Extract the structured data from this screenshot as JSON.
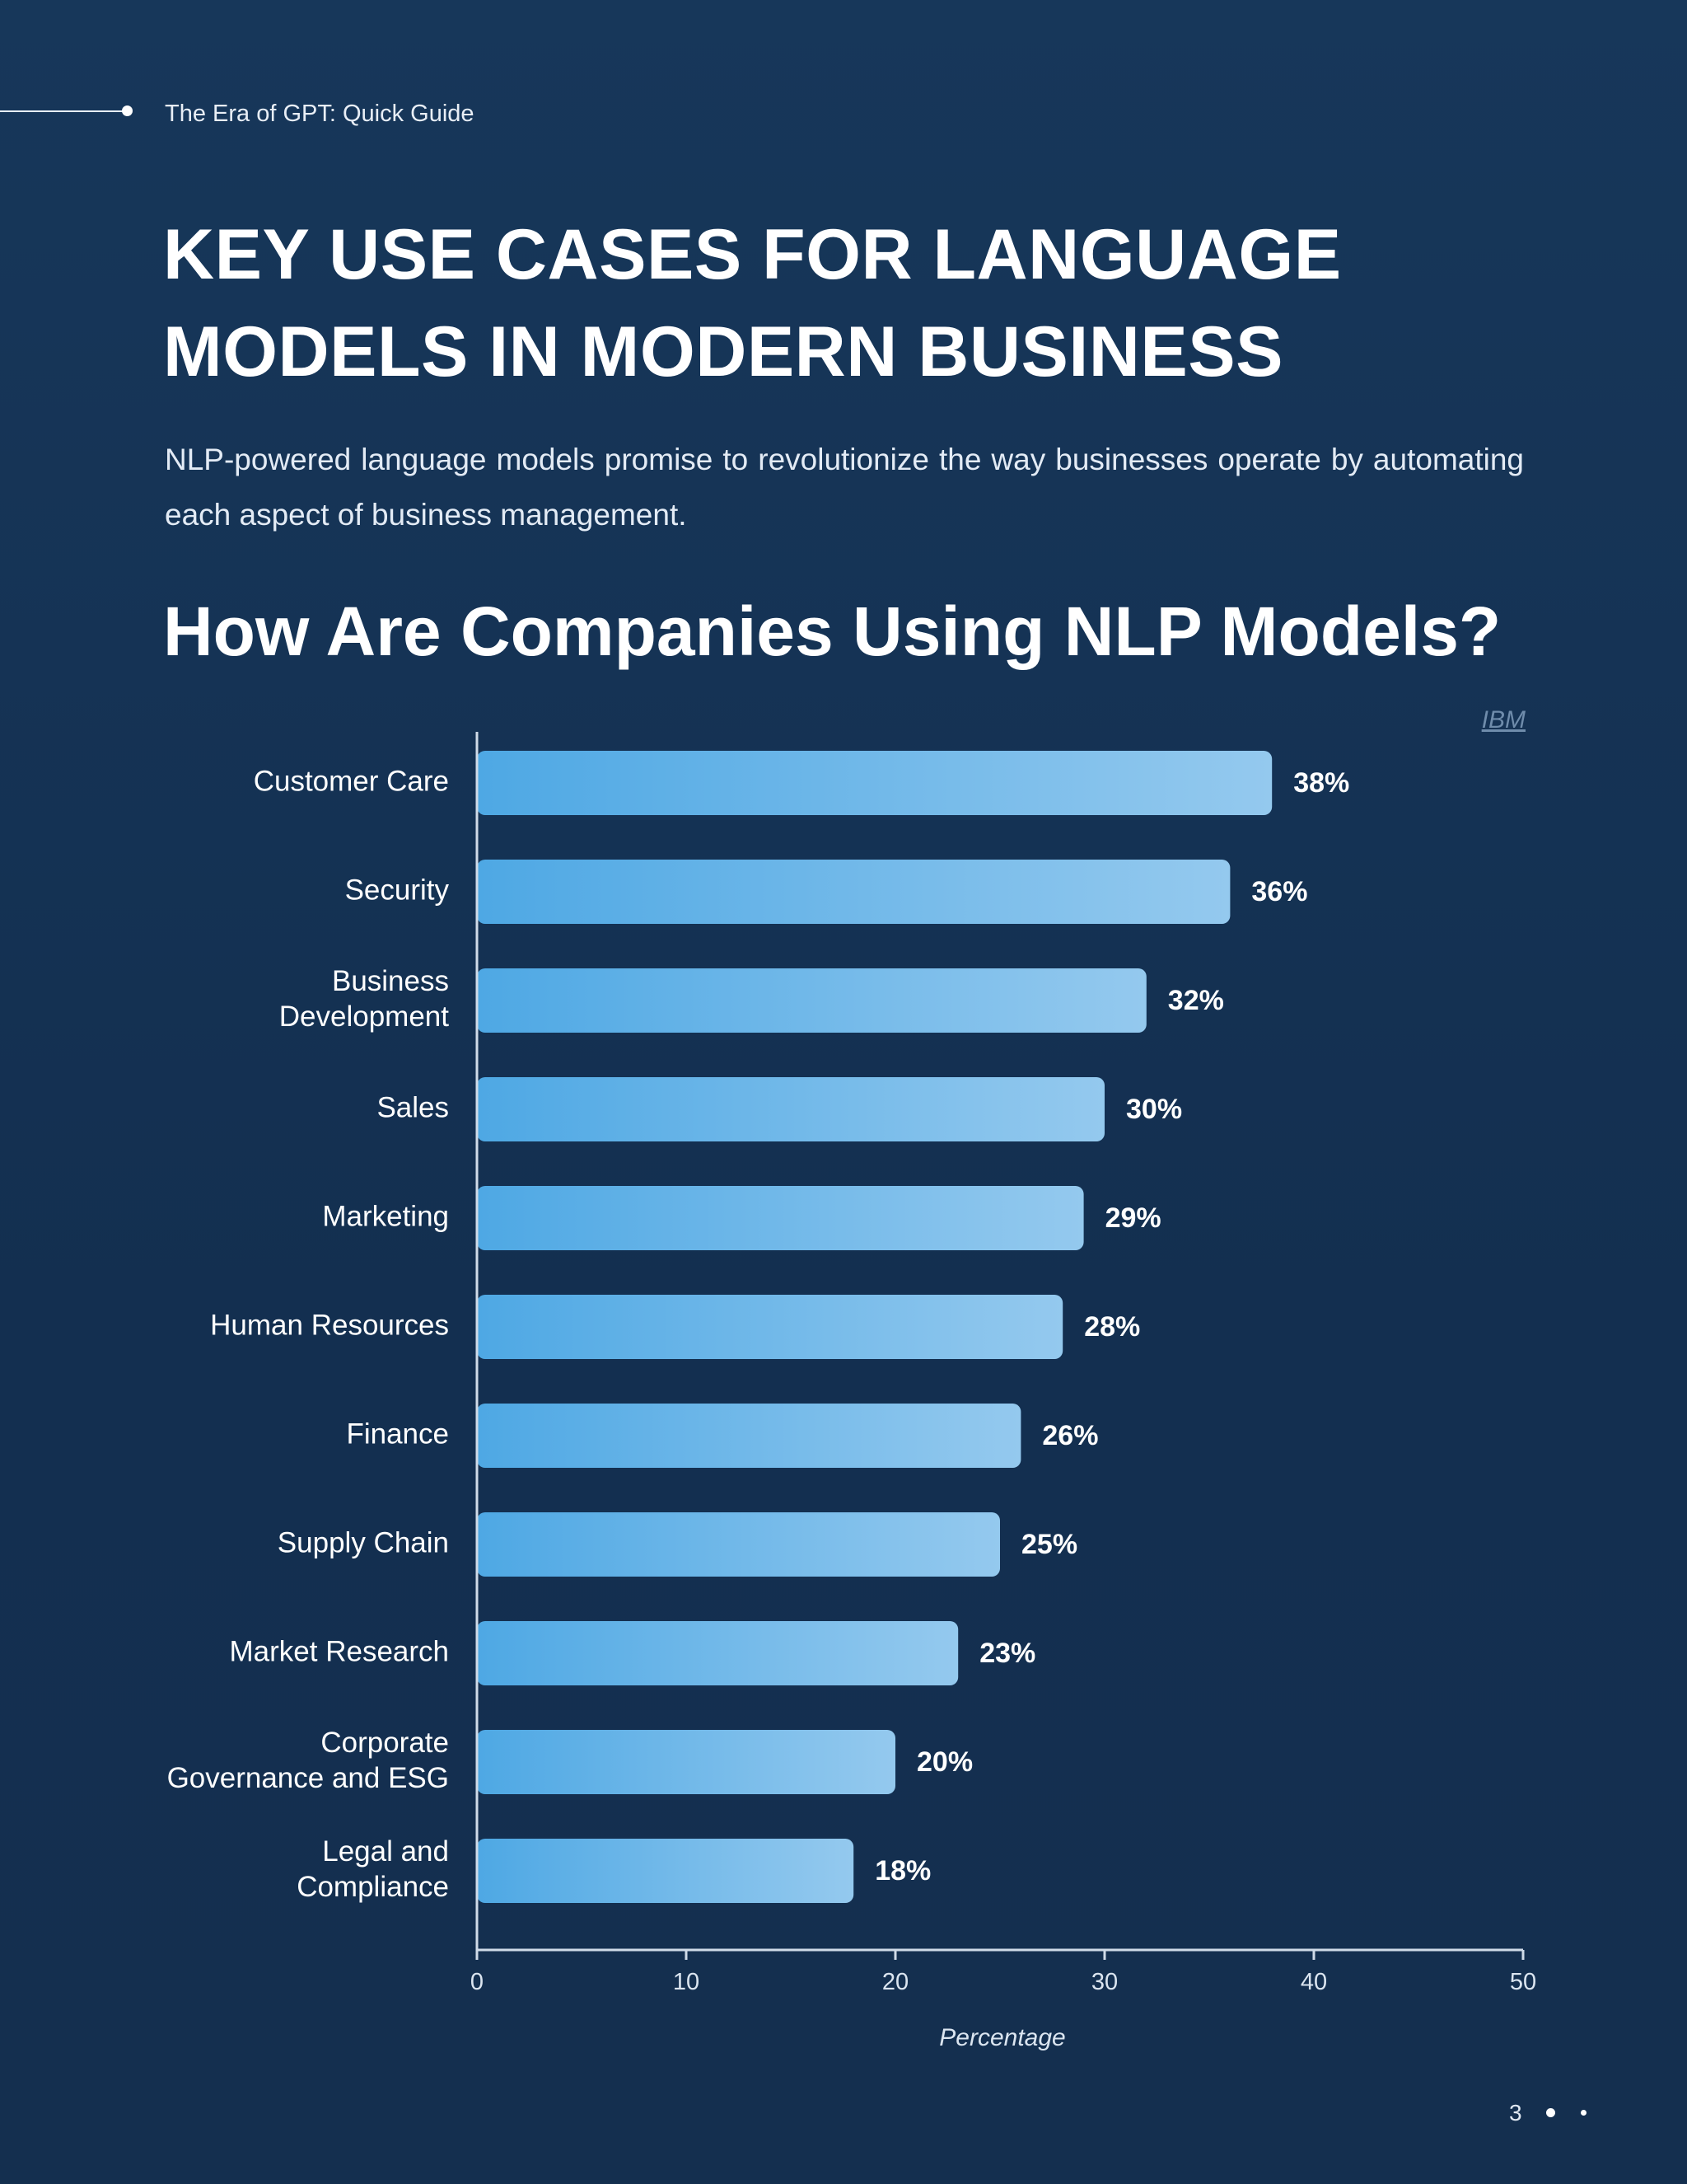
{
  "header": {
    "running_title": "The Era of GPT: Quick Guide"
  },
  "main_title": "KEY USE CASES FOR LANGUAGE MODELS IN MODERN BUSINESS",
  "intro": "NLP-powered language models promise to revolutionize the way businesses operate by automating each aspect of business management.",
  "source_link": "IBM",
  "footer": {
    "page_number": "3"
  },
  "colors": {
    "background": "#152f4f",
    "bar_start": "#4ea8e4",
    "bar_end": "#94c9ee",
    "axis": "#d0dbe8"
  },
  "chart_data": {
    "type": "bar",
    "orientation": "horizontal",
    "title": "How Are Companies Using NLP Models?",
    "xlabel": "Percentage",
    "ylabel": "",
    "xlim": [
      0,
      50
    ],
    "xticks": [
      0,
      10,
      20,
      30,
      40,
      50
    ],
    "grid": false,
    "categories": [
      "Customer Care",
      "Security",
      "Business Development",
      "Sales",
      "Marketing",
      "Human Resources",
      "Finance",
      "Supply Chain",
      "Market Research",
      "Corporate Governance and ESG",
      "Legal and Compliance"
    ],
    "category_lines": [
      [
        "Customer Care"
      ],
      [
        "Security"
      ],
      [
        "Business",
        "Development"
      ],
      [
        "Sales"
      ],
      [
        "Marketing"
      ],
      [
        "Human Resources"
      ],
      [
        "Finance"
      ],
      [
        "Supply Chain"
      ],
      [
        "Market Research"
      ],
      [
        "Corporate",
        "Governance and ESG"
      ],
      [
        "Legal and",
        "Compliance"
      ]
    ],
    "values": [
      38,
      36,
      32,
      30,
      29,
      28,
      26,
      25,
      23,
      20,
      18
    ],
    "data_labels": [
      "38%",
      "36%",
      "32%",
      "30%",
      "29%",
      "28%",
      "26%",
      "25%",
      "23%",
      "20%",
      "18%"
    ]
  }
}
